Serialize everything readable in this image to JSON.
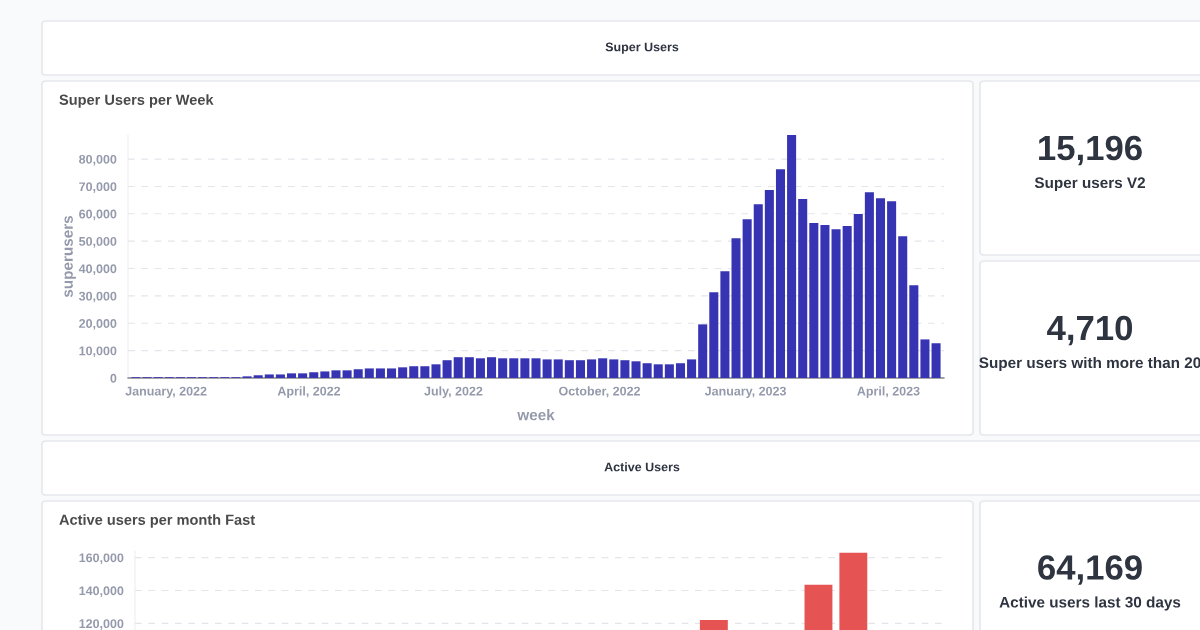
{
  "chart_data": [
    {
      "type": "other",
      "title": "Super Users"
    },
    {
      "type": "bar",
      "title": "Super Users per Week",
      "xlabel": "week",
      "ylabel": "superusers",
      "color": "#3734b3",
      "x": [
        "2021-12-13",
        "2021-12-20",
        "2021-12-27",
        "2022-01-03",
        "2022-01-10",
        "2022-01-17",
        "2022-01-24",
        "2022-01-31",
        "2022-02-07",
        "2022-02-14",
        "2022-02-21",
        "2022-02-28",
        "2022-03-07",
        "2022-03-14",
        "2022-03-21",
        "2022-03-28",
        "2022-04-04",
        "2022-04-11",
        "2022-04-18",
        "2022-04-25",
        "2022-05-02",
        "2022-05-09",
        "2022-05-16",
        "2022-05-23",
        "2022-05-30",
        "2022-06-06",
        "2022-06-13",
        "2022-06-20",
        "2022-06-27",
        "2022-07-04",
        "2022-07-11",
        "2022-07-18",
        "2022-07-25",
        "2022-08-01",
        "2022-08-08",
        "2022-08-15",
        "2022-08-22",
        "2022-08-29",
        "2022-09-05",
        "2022-09-12",
        "2022-09-19",
        "2022-09-26",
        "2022-10-03",
        "2022-10-10",
        "2022-10-17",
        "2022-10-24",
        "2022-10-31",
        "2022-11-07",
        "2022-11-14",
        "2022-11-21",
        "2022-11-28",
        "2022-12-05",
        "2022-12-12",
        "2022-12-19",
        "2022-12-26",
        "2023-01-02",
        "2023-01-09",
        "2023-01-16",
        "2023-01-23",
        "2023-01-30",
        "2023-02-06",
        "2023-02-13",
        "2023-02-20",
        "2023-02-27",
        "2023-03-06",
        "2023-03-13",
        "2023-03-20",
        "2023-03-27",
        "2023-04-03",
        "2023-04-10",
        "2023-04-17",
        "2023-04-24",
        "2023-05-01"
      ],
      "values": [
        300,
        300,
        300,
        300,
        300,
        300,
        300,
        300,
        300,
        300,
        600,
        1000,
        1300,
        1300,
        1700,
        1700,
        2100,
        2400,
        2800,
        2800,
        3200,
        3500,
        3500,
        3500,
        3900,
        4300,
        4300,
        5000,
        6500,
        7600,
        7600,
        7200,
        7600,
        7200,
        7200,
        7200,
        7200,
        6800,
        6800,
        6500,
        6500,
        6800,
        7200,
        6800,
        6500,
        6100,
        5400,
        5000,
        5000,
        5400,
        6800,
        19600,
        31300,
        39000,
        51100,
        58000,
        63500,
        68700,
        76300,
        88800,
        65400,
        56600,
        55900,
        54400,
        55500,
        59900,
        67900,
        65700,
        64600,
        51800,
        33900,
        14100,
        12700
      ],
      "xlim": [
        "2021-12-08",
        "2023-05-06"
      ],
      "xticks": [
        {
          "value": "2022-01-01",
          "label": "January, 2022"
        },
        {
          "value": "2022-04-01",
          "label": "April, 2022"
        },
        {
          "value": "2022-07-01",
          "label": "July, 2022"
        },
        {
          "value": "2022-10-01",
          "label": "October, 2022"
        },
        {
          "value": "2023-01-01",
          "label": "January, 2023"
        },
        {
          "value": "2023-04-01",
          "label": "April, 2023"
        }
      ],
      "ylim": [
        0,
        88800
      ],
      "yticks": [
        0,
        {
          "value": 10000,
          "label": "10,000"
        },
        {
          "value": 20000,
          "label": "20,000"
        },
        {
          "value": 30000,
          "label": "30,000"
        },
        {
          "value": 40000,
          "label": "40,000"
        },
        {
          "value": 50000,
          "label": "50,000"
        },
        {
          "value": 60000,
          "label": "60,000"
        },
        {
          "value": 70000,
          "label": "70,000"
        },
        {
          "value": 80000,
          "label": "80,000"
        }
      ],
      "grid": "y"
    },
    {
      "type": "other",
      "title": "15,196",
      "subtitle": "Super users V2"
    },
    {
      "type": "other",
      "title": "4,710",
      "subtitle": "Super users with more than 20"
    },
    {
      "type": "other",
      "title": "Active Users"
    },
    {
      "type": "bar",
      "title": "Active users per month Fast",
      "color": "#e65353",
      "categories": [
        null,
        null,
        null,
        null,
        null,
        null,
        null,
        null,
        null,
        null,
        null,
        null,
        null,
        null,
        null,
        null,
        null,
        null,
        null,
        null,
        null,
        null,
        null
      ],
      "values": [
        null,
        null,
        null,
        null,
        null,
        null,
        null,
        null,
        null,
        null,
        null,
        null,
        null,
        null,
        null,
        null,
        122000,
        null,
        null,
        143500,
        163000,
        null,
        null
      ],
      "yticks": [
        {
          "value": 120000,
          "label": "120,000"
        },
        {
          "value": 140000,
          "label": "140,000"
        },
        {
          "value": 160000,
          "label": "160,000"
        }
      ],
      "ylim": [
        116000,
        164000
      ],
      "tick_labels": "y",
      "grid": "y"
    },
    {
      "type": "other",
      "title": "64,169",
      "subtitle": "Active users last 30 days"
    }
  ]
}
